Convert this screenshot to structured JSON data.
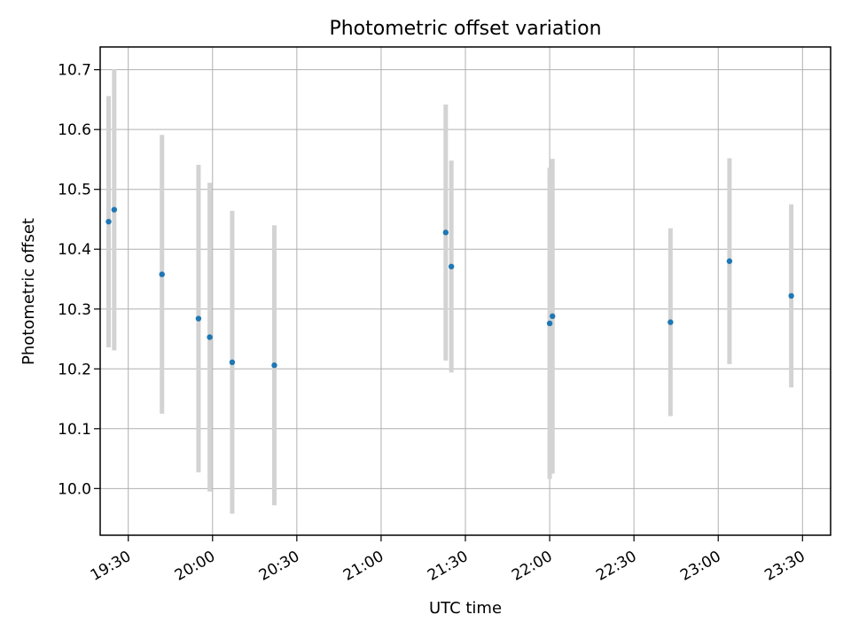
{
  "chart_data": {
    "type": "scatter",
    "title": "Photometric offset variation",
    "xlabel": "UTC time",
    "ylabel": "Photometric offset",
    "xlim": [
      "19:20",
      "23:40"
    ],
    "ylim": [
      9.922,
      10.738
    ],
    "x_ticks": [
      "19:30",
      "20:00",
      "20:30",
      "21:00",
      "21:30",
      "22:00",
      "22:30",
      "23:00",
      "23:30"
    ],
    "y_ticks": [
      "10.0",
      "10.1",
      "10.2",
      "10.3",
      "10.4",
      "10.5",
      "10.6",
      "10.7"
    ],
    "grid": true,
    "marker_color": "#1f77b4",
    "errorbar_color": "#d3d3d3",
    "series": [
      {
        "points": [
          {
            "x": "19:23",
            "y": 10.446,
            "err": 0.21
          },
          {
            "x": "19:25",
            "y": 10.466,
            "err": 0.235
          },
          {
            "x": "19:42",
            "y": 10.358,
            "err": 0.233
          },
          {
            "x": "19:55",
            "y": 10.284,
            "err": 0.257
          },
          {
            "x": "19:59",
            "y": 10.253,
            "err": 0.258
          },
          {
            "x": "20:07",
            "y": 10.211,
            "err": 0.253
          },
          {
            "x": "20:22",
            "y": 10.206,
            "err": 0.234
          },
          {
            "x": "21:23",
            "y": 10.428,
            "err": 0.214
          },
          {
            "x": "21:25",
            "y": 10.371,
            "err": 0.177
          },
          {
            "x": "22:00",
            "y": 10.276,
            "err": 0.26
          },
          {
            "x": "22:01",
            "y": 10.288,
            "err": 0.263
          },
          {
            "x": "22:43",
            "y": 10.278,
            "err": 0.157
          },
          {
            "x": "23:04",
            "y": 10.38,
            "err": 0.172
          },
          {
            "x": "23:26",
            "y": 10.322,
            "err": 0.153
          }
        ]
      }
    ]
  }
}
